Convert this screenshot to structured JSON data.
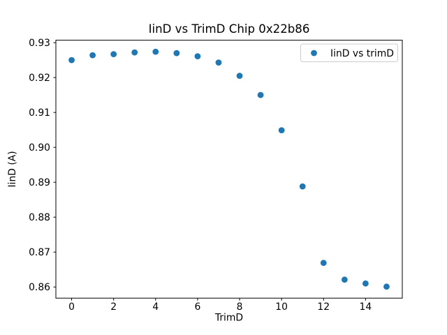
{
  "figure": {
    "background": "#ffffff"
  },
  "chart_data": {
    "type": "scatter",
    "title": "IinD vs TrimD Chip 0x22b86",
    "xlabel": "TrimD",
    "ylabel": "IinD (A)",
    "xlim": [
      -0.75,
      15.75
    ],
    "ylim": [
      0.8568,
      0.9307
    ],
    "xticks": [
      0,
      2,
      4,
      6,
      8,
      10,
      12,
      14
    ],
    "yticks": [
      0.86,
      0.87,
      0.88,
      0.89,
      0.9,
      0.91,
      0.92,
      0.93
    ],
    "grid": false,
    "legend": {
      "label": "IinD vs trimD",
      "position": "upper right"
    },
    "series": [
      {
        "name": "IinD vs trimD",
        "marker": "circle",
        "color": "#1f77b4",
        "x": [
          0,
          1,
          2,
          3,
          4,
          5,
          6,
          7,
          8,
          9,
          10,
          11,
          12,
          13,
          14,
          15
        ],
        "y": [
          0.925,
          0.9264,
          0.9267,
          0.9272,
          0.9274,
          0.927,
          0.9261,
          0.9243,
          0.9205,
          0.915,
          0.9049,
          0.8888,
          0.8669,
          0.8621,
          0.861,
          0.8601
        ]
      }
    ]
  },
  "colors": {
    "marker": "#1f77b4",
    "spine": "#000000",
    "legend_border": "#cccccc",
    "legend_background": "#ffffff"
  }
}
